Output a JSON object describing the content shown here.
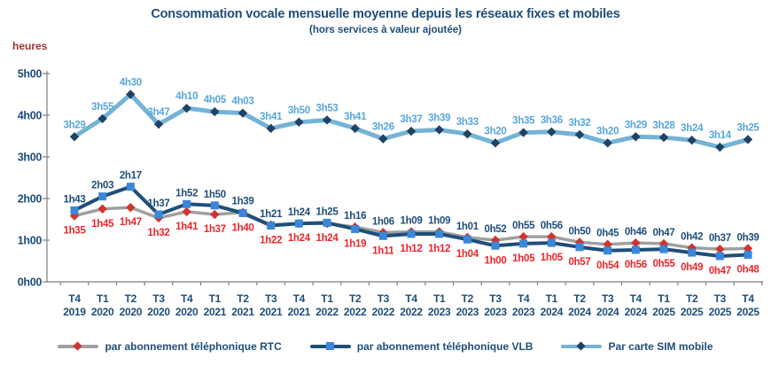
{
  "title": "Consommation vocale mensuelle moyenne depuis les réseaux fixes et mobiles",
  "subtitle": "(hors services à valeur ajoutée)",
  "y_axis_unit": "heures",
  "colors": {
    "title_text": "#1F4E79",
    "tick_label_text": "#1F4E79",
    "axis_line": "#7F7F7F",
    "unit_text": "#953735",
    "background": "#FFFFFF"
  },
  "chart_data": {
    "type": "line",
    "title": "Consommation vocale mensuelle moyenne depuis les réseaux fixes et mobiles",
    "subtitle": "(hors services à valeur ajoutée)",
    "ylabel": "heures",
    "ylim_hours": [
      0,
      5
    ],
    "y_ticks": [
      "0h00",
      "1h00",
      "2h00",
      "3h00",
      "4h00",
      "5h00"
    ],
    "grid": false,
    "legend_position": "bottom",
    "x_categories": [
      {
        "quarter": "T4",
        "year": "2019"
      },
      {
        "quarter": "T1",
        "year": "2020"
      },
      {
        "quarter": "T2",
        "year": "2020"
      },
      {
        "quarter": "T3",
        "year": "2020"
      },
      {
        "quarter": "T4",
        "year": "2020"
      },
      {
        "quarter": "T1",
        "year": "2021"
      },
      {
        "quarter": "T2",
        "year": "2021"
      },
      {
        "quarter": "T3",
        "year": "2021"
      },
      {
        "quarter": "T4",
        "year": "2021"
      },
      {
        "quarter": "T1",
        "year": "2022"
      },
      {
        "quarter": "T2",
        "year": "2022"
      },
      {
        "quarter": "T3",
        "year": "2022"
      },
      {
        "quarter": "T4",
        "year": "2022"
      },
      {
        "quarter": "T1",
        "year": "2023"
      },
      {
        "quarter": "T2",
        "year": "2023"
      },
      {
        "quarter": "T3",
        "year": "2023"
      },
      {
        "quarter": "T4",
        "year": "2023"
      },
      {
        "quarter": "T1",
        "year": "2024"
      },
      {
        "quarter": "T2",
        "year": "2024"
      },
      {
        "quarter": "T3",
        "year": "2024"
      },
      {
        "quarter": "T4",
        "year": "2024"
      },
      {
        "quarter": "T1",
        "year": "2025"
      },
      {
        "quarter": "T2",
        "year": "2025"
      },
      {
        "quarter": "T3",
        "year": "2025"
      },
      {
        "quarter": "T4",
        "year": "2025"
      }
    ],
    "series": [
      {
        "key": "rtc",
        "name": "par abonnement téléphonique RTC",
        "marker": "diamond",
        "line_color": "#A0A0A0",
        "marker_color": "#CF3530",
        "label_color": "#E8262B",
        "label_placement": "below-pair",
        "values": [
          "1h35",
          "1h45",
          "1h47",
          "1h32",
          "1h41",
          "1h37",
          "1h40",
          "1h22",
          "1h24",
          "1h24",
          "1h19",
          "1h11",
          "1h12",
          "1h12",
          "1h04",
          "1h00",
          "1h05",
          "1h05",
          "0h57",
          "0h54",
          "0h56",
          "0h55",
          "0h49",
          "0h47",
          "0h48"
        ]
      },
      {
        "key": "vlb",
        "name": "par abonnement téléphonique VLB",
        "marker": "square",
        "line_color": "#1F4E79",
        "marker_color": "#3A87D9",
        "label_color": "#1F4E79",
        "label_placement": "above-pair",
        "values": [
          "1h43",
          "2h03",
          "2h17",
          "1h37",
          "1h52",
          "1h50",
          "1h39",
          "1h21",
          "1h24",
          "1h25",
          "1h16",
          "1h06",
          "1h09",
          "1h09",
          "1h01",
          "0h52",
          "0h55",
          "0h56",
          "0h50",
          "0h45",
          "0h46",
          "0h47",
          "0h42",
          "0h37",
          "0h39"
        ]
      },
      {
        "key": "sim",
        "name": "Par carte SIM mobile",
        "marker": "diamond",
        "line_color": "#74B2D6",
        "marker_color": "#1F4265",
        "label_color": "#58A6D8",
        "label_placement": "above",
        "values": [
          "3h29",
          "3h55",
          "4h30",
          "3h47",
          "4h10",
          "4h05",
          "4h03",
          "3h41",
          "3h50",
          "3h53",
          "3h41",
          "3h26",
          "3h37",
          "3h39",
          "3h33",
          "3h20",
          "3h35",
          "3h36",
          "3h32",
          "3h20",
          "3h29",
          "3h28",
          "3h24",
          "3h14",
          "3h25"
        ]
      }
    ]
  }
}
